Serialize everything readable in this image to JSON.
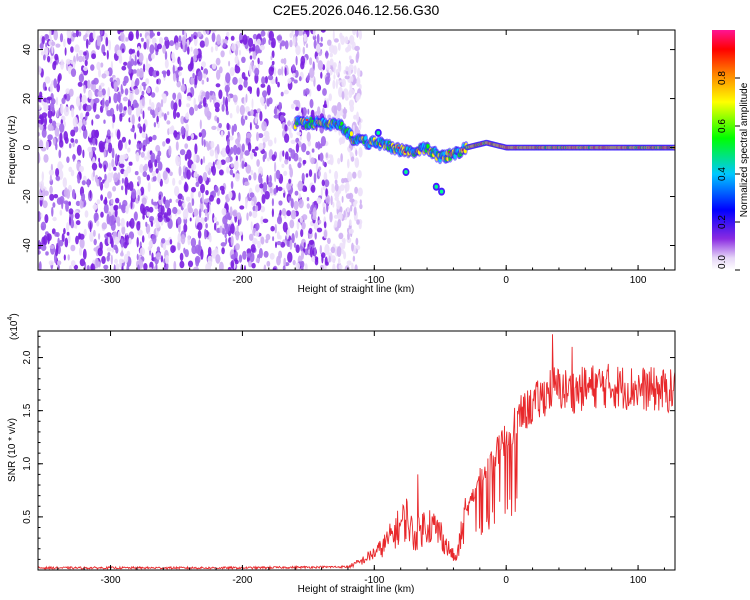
{
  "title": "C2E5.2026.046.12.56.G30",
  "chart_data": [
    {
      "type": "heatmap",
      "name": "spectrogram",
      "xlabel": "Height of straight line (km)",
      "ylabel": "Frequency (Hz)",
      "xlim": [
        -355,
        128
      ],
      "ylim": [
        -50,
        48
      ],
      "xticks": [
        -300,
        -200,
        -100,
        0,
        100
      ],
      "yticks": [
        -40,
        -20,
        0,
        20,
        40
      ],
      "colorbar": {
        "label": "Normalized spectral amplitude",
        "range": [
          0,
          1
        ],
        "ticks": [
          "0.0",
          "0.2",
          "0.4",
          "0.6",
          "0.8"
        ],
        "colors": [
          "#ffffff",
          "#e9d9f8",
          "#8a2be2",
          "#0000ff",
          "#00c8ff",
          "#00ff00",
          "#ffff00",
          "#ff8000",
          "#ff0000",
          "#ff1493"
        ]
      },
      "noise_region": {
        "x_from": -355,
        "x_to": -135,
        "amplitude": 0.3
      },
      "signal_ridge": [
        {
          "x": -160,
          "y": 10
        },
        {
          "x": -140,
          "y": 10
        },
        {
          "x": -125,
          "y": 9
        },
        {
          "x": -115,
          "y": 3
        },
        {
          "x": -100,
          "y": 2
        },
        {
          "x": -90,
          "y": 1
        },
        {
          "x": -80,
          "y": -1
        },
        {
          "x": -70,
          "y": -2
        },
        {
          "x": -60,
          "y": 0
        },
        {
          "x": -50,
          "y": -4
        },
        {
          "x": -40,
          "y": -3
        },
        {
          "x": -30,
          "y": 0
        },
        {
          "x": -15,
          "y": 2
        },
        {
          "x": 0,
          "y": 0
        },
        {
          "x": 50,
          "y": 0
        },
        {
          "x": 128,
          "y": 0
        }
      ],
      "side_features": [
        {
          "x": -97,
          "y": 6
        },
        {
          "x": -76,
          "y": -10
        },
        {
          "x": -53,
          "y": -16
        },
        {
          "x": -49,
          "y": -18
        }
      ]
    },
    {
      "type": "line",
      "name": "snr",
      "xlabel": "Height of straight line (km)",
      "ylabel": "SNR (10 * v/v)",
      "scale_label": "(x10",
      "scale_exponent": "4",
      "xlim": [
        -355,
        128
      ],
      "ylim": [
        0,
        2.25
      ],
      "xticks": [
        -300,
        -200,
        -100,
        0,
        100
      ],
      "yticks": [
        "0.5",
        "1.0",
        "1.5",
        "2.0"
      ],
      "color": "#e8282b",
      "envelope": [
        {
          "x": -355,
          "y": 0.02
        },
        {
          "x": -200,
          "y": 0.02
        },
        {
          "x": -120,
          "y": 0.03
        },
        {
          "x": -110,
          "y": 0.08
        },
        {
          "x": -95,
          "y": 0.2
        },
        {
          "x": -85,
          "y": 0.35
        },
        {
          "x": -75,
          "y": 0.5
        },
        {
          "x": -70,
          "y": 0.3
        },
        {
          "x": -60,
          "y": 0.45
        },
        {
          "x": -50,
          "y": 0.35
        },
        {
          "x": -45,
          "y": 0.22
        },
        {
          "x": -38,
          "y": 0.1
        },
        {
          "x": -30,
          "y": 0.55
        },
        {
          "x": -20,
          "y": 0.85
        },
        {
          "x": -10,
          "y": 1.05
        },
        {
          "x": 0,
          "y": 1.25
        },
        {
          "x": 10,
          "y": 1.45
        },
        {
          "x": 25,
          "y": 1.6
        },
        {
          "x": 35,
          "y": 1.72
        },
        {
          "x": 50,
          "y": 1.68
        },
        {
          "x": 70,
          "y": 1.74
        },
        {
          "x": 90,
          "y": 1.72
        },
        {
          "x": 110,
          "y": 1.7
        },
        {
          "x": 128,
          "y": 1.68
        }
      ],
      "peaks": [
        {
          "x": -67,
          "y": 0.9
        },
        {
          "x": 35,
          "y": 2.22
        },
        {
          "x": 50,
          "y": 2.1
        }
      ]
    }
  ]
}
